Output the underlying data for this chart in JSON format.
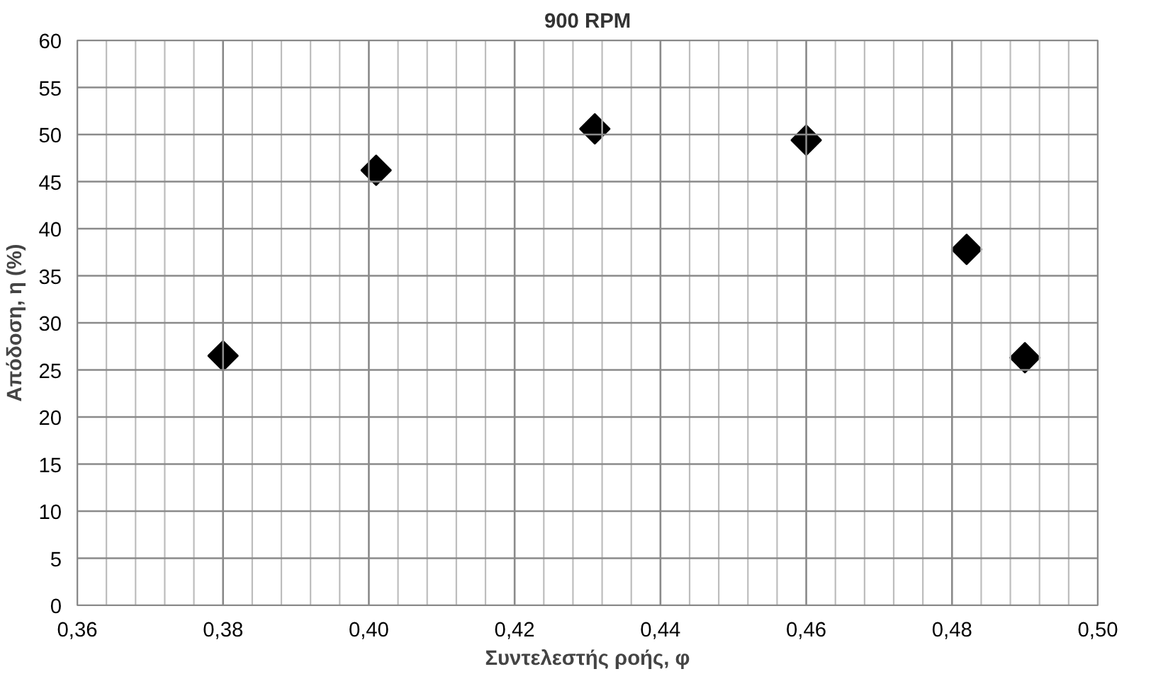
{
  "chart_data": {
    "type": "scatter",
    "title": "900 RPM",
    "xlabel": "Συντελεστής ροής, φ",
    "ylabel": "Απόδοση, η (%)",
    "x": [
      0.38,
      0.401,
      0.431,
      0.46,
      0.482,
      0.49
    ],
    "series": [
      {
        "color": "#000000",
        "values": [
          26.5,
          46.2,
          50.6,
          49.4,
          37.8,
          26.3
        ]
      }
    ],
    "marker": "diamond",
    "grid": true,
    "xlim": [
      0.36,
      0.5
    ],
    "ylim": [
      0,
      60
    ],
    "xticks": [
      {
        "value": 0.36,
        "label": "0,36"
      },
      {
        "value": 0.364,
        "label": null
      },
      {
        "value": 0.368,
        "label": null
      },
      {
        "value": 0.372,
        "label": null
      },
      {
        "value": 0.376,
        "label": null
      },
      {
        "value": 0.38,
        "label": "0,38"
      },
      {
        "value": 0.384,
        "label": null
      },
      {
        "value": 0.388,
        "label": null
      },
      {
        "value": 0.392,
        "label": null
      },
      {
        "value": 0.396,
        "label": null
      },
      {
        "value": 0.4,
        "label": "0,40"
      },
      {
        "value": 0.404,
        "label": null
      },
      {
        "value": 0.408,
        "label": null
      },
      {
        "value": 0.412,
        "label": null
      },
      {
        "value": 0.416,
        "label": null
      },
      {
        "value": 0.42,
        "label": "0,42"
      },
      {
        "value": 0.424,
        "label": null
      },
      {
        "value": 0.428,
        "label": null
      },
      {
        "value": 0.432,
        "label": null
      },
      {
        "value": 0.436,
        "label": null
      },
      {
        "value": 0.44,
        "label": "0,44"
      },
      {
        "value": 0.444,
        "label": null
      },
      {
        "value": 0.448,
        "label": null
      },
      {
        "value": 0.452,
        "label": null
      },
      {
        "value": 0.456,
        "label": null
      },
      {
        "value": 0.46,
        "label": "0,46"
      },
      {
        "value": 0.464,
        "label": null
      },
      {
        "value": 0.468,
        "label": null
      },
      {
        "value": 0.472,
        "label": null
      },
      {
        "value": 0.476,
        "label": null
      },
      {
        "value": 0.48,
        "label": "0,48"
      },
      {
        "value": 0.484,
        "label": null
      },
      {
        "value": 0.488,
        "label": null
      },
      {
        "value": 0.492,
        "label": null
      },
      {
        "value": 0.496,
        "label": null
      },
      {
        "value": 0.5,
        "label": "0,50"
      }
    ],
    "yticks": [
      0,
      5,
      10,
      15,
      20,
      25,
      30,
      35,
      40,
      45,
      50,
      55,
      60
    ]
  }
}
